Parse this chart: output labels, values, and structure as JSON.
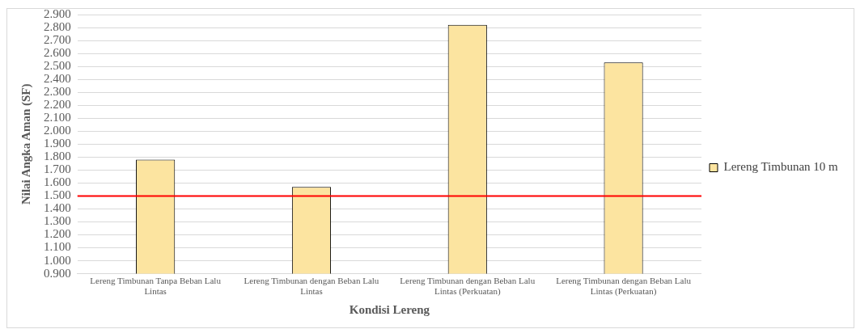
{
  "chart_data": {
    "type": "bar",
    "xlabel": "Kondisi Lereng",
    "ylabel": "Nilai Angka Aman (SF)",
    "categories": [
      "Lereng Timbunan Tanpa Beban Lalu Lintas",
      "Lereng Timbunan dengan Beban Lalu Lintas",
      "Lereng Timbunan dengan Beban Lalu Lintas (Perkuatan)",
      "Lereng Timbunan dengan Beban Lalu Lintas (Perkuatan)"
    ],
    "series": [
      {
        "name": "Lereng Timbunan 10 m",
        "color": "#fce4a0",
        "values": [
          1.78,
          1.57,
          2.82,
          2.53
        ]
      }
    ],
    "ylim": [
      0.9,
      2.9
    ],
    "yticks": [
      {
        "value": 0.9,
        "label": "0.900"
      },
      {
        "value": 1.0,
        "label": "1.000"
      },
      {
        "value": 1.1,
        "label": "1.100"
      },
      {
        "value": 1.2,
        "label": "1.200"
      },
      {
        "value": 1.3,
        "label": "1.300"
      },
      {
        "value": 1.4,
        "label": "1.400"
      },
      {
        "value": 1.5,
        "label": "1.500"
      },
      {
        "value": 1.6,
        "label": "1.600"
      },
      {
        "value": 1.7,
        "label": "1.700"
      },
      {
        "value": 1.8,
        "label": "1.800"
      },
      {
        "value": 1.9,
        "label": "1.900"
      },
      {
        "value": 2.0,
        "label": "2.000"
      },
      {
        "value": 2.1,
        "label": "2.100"
      },
      {
        "value": 2.2,
        "label": "2.200"
      },
      {
        "value": 2.3,
        "label": "2.300"
      },
      {
        "value": 2.4,
        "label": "2.400"
      },
      {
        "value": 2.5,
        "label": "2.500"
      },
      {
        "value": 2.6,
        "label": "2.600"
      },
      {
        "value": 2.7,
        "label": "2.700"
      },
      {
        "value": 2.8,
        "label": "2.800"
      },
      {
        "value": 2.9,
        "label": "2.900"
      }
    ],
    "ref_lines": [
      {
        "axis": "y",
        "value": 1.5,
        "color": "#ff0000"
      }
    ],
    "grid": "y",
    "legend": "right"
  }
}
